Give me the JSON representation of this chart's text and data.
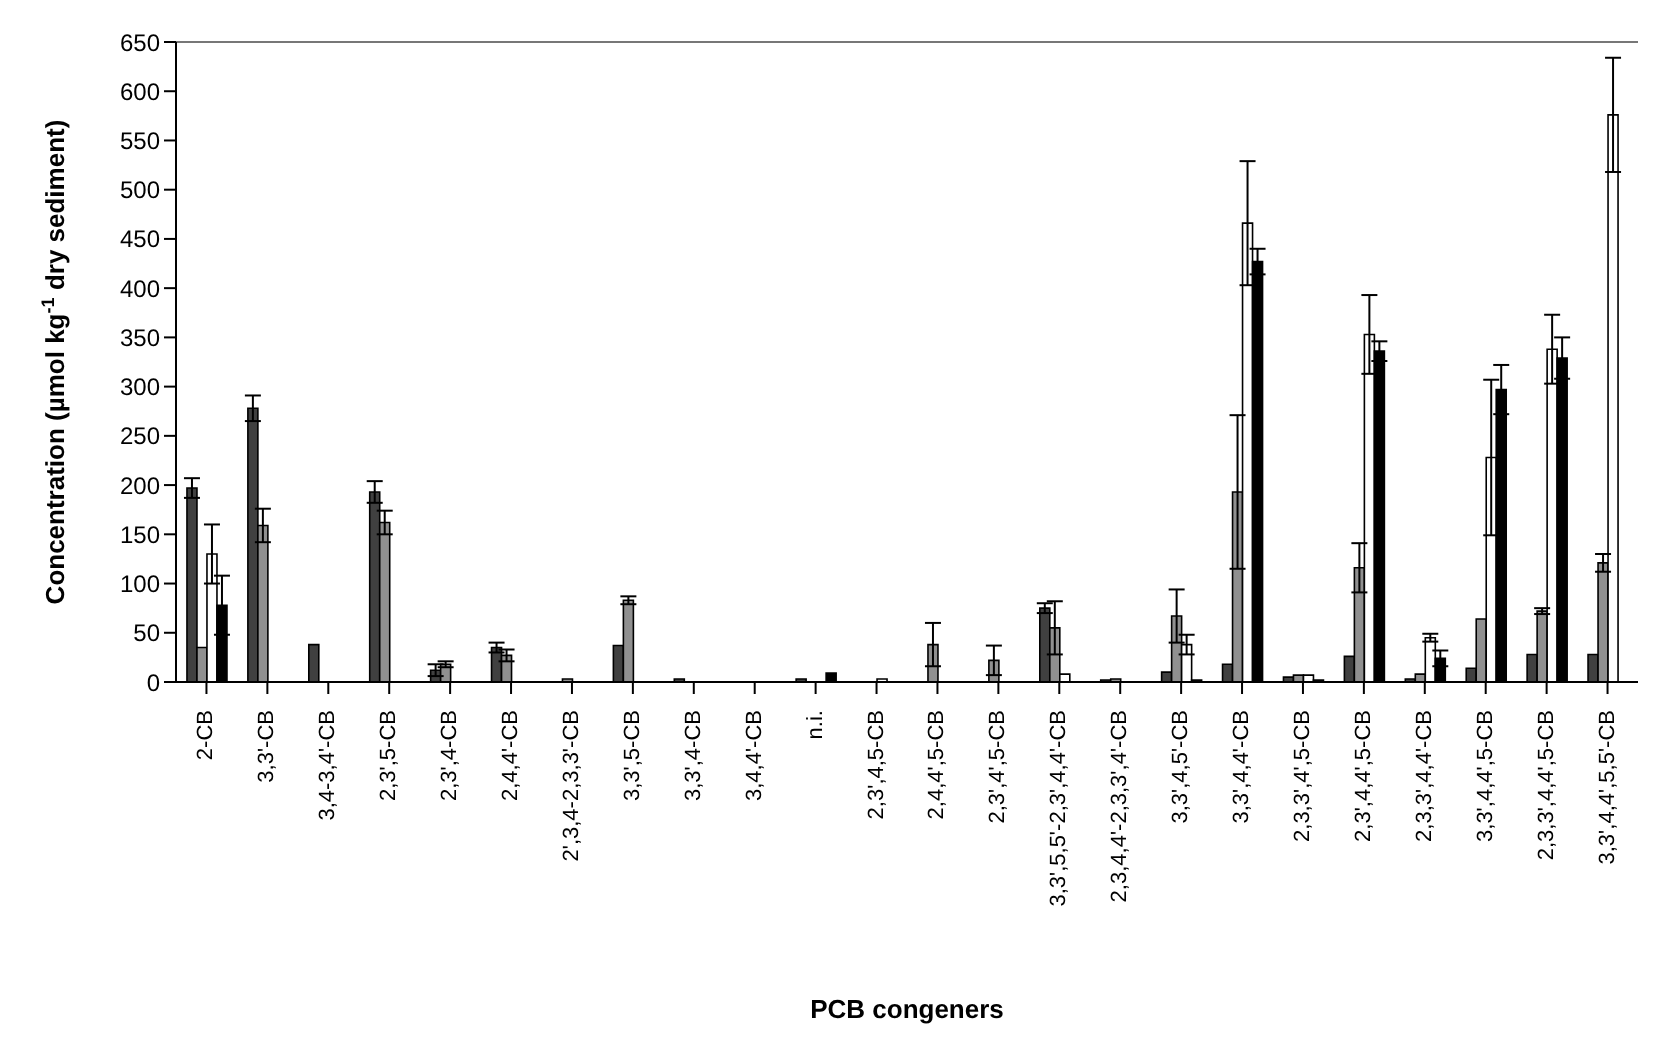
{
  "chart_data": {
    "type": "bar",
    "xlabel": "PCB congeners",
    "ylabel": "Concentration (µmol kg$^{-1}$ dry sediment)",
    "categories": [
      "2-CB",
      "3,3'-CB",
      "3,4-3,4'-CB",
      "2,3',5-CB",
      "2,3',4-CB",
      "2,4,4'-CB",
      "2',3,4-2,3,3'-CB",
      "3,3',5-CB",
      "3,3',4-CB",
      "3,4,4'-CB",
      "n.i.",
      "2,3',4,5-CB",
      "2,4,4',5-CB",
      "2,3',4',5-CB",
      "3,3',5,5'-2,3',4,4'-CB",
      "2,3,4,4'-2,3,3',4'-CB",
      "3,3',4,5'-CB",
      "3,3',4,4'-CB",
      "2,3,3',4',5-CB",
      "2,3',4,4',5-CB",
      "2,3,3',4,4'-CB",
      "3,3',4,4',5-CB",
      "2,3,3',4,4',5-CB",
      "3,3',4,4',5,5'-CB"
    ],
    "series": [
      {
        "color": "#404040",
        "values": [
          197,
          278,
          38,
          193,
          12,
          35,
          null,
          37,
          3,
          null,
          3,
          null,
          null,
          null,
          75,
          2,
          10,
          18,
          5,
          26,
          3,
          14,
          28,
          28
        ],
        "errors": [
          10,
          13,
          null,
          11,
          6,
          5,
          null,
          null,
          null,
          null,
          null,
          null,
          null,
          null,
          5,
          null,
          null,
          null,
          null,
          null,
          null,
          null,
          null,
          null
        ]
      },
      {
        "color": "#909090",
        "values": [
          35,
          159,
          null,
          162,
          18,
          27,
          3,
          83,
          null,
          null,
          null,
          null,
          38,
          22,
          55,
          3,
          67,
          193,
          7,
          116,
          8,
          64,
          72,
          121
        ],
        "errors": [
          null,
          17,
          null,
          12,
          3,
          6,
          null,
          4,
          null,
          null,
          null,
          null,
          22,
          15,
          27,
          null,
          27,
          78,
          null,
          25,
          null,
          null,
          3,
          9
        ]
      },
      {
        "color": "#ffffff",
        "values": [
          130,
          null,
          null,
          null,
          null,
          null,
          null,
          null,
          null,
          null,
          null,
          3,
          null,
          null,
          8,
          null,
          38,
          466,
          7,
          353,
          45,
          228,
          338,
          576
        ],
        "errors": [
          30,
          null,
          null,
          null,
          null,
          null,
          null,
          null,
          null,
          null,
          null,
          null,
          null,
          null,
          null,
          null,
          10,
          63,
          null,
          40,
          4,
          79,
          35,
          58
        ]
      },
      {
        "color": "#000000",
        "values": [
          78,
          null,
          null,
          null,
          null,
          null,
          null,
          null,
          null,
          null,
          9,
          null,
          null,
          null,
          null,
          null,
          2,
          427,
          2,
          336,
          24,
          297,
          329,
          null
        ],
        "errors": [
          30,
          null,
          null,
          null,
          null,
          null,
          null,
          null,
          null,
          null,
          null,
          null,
          null,
          null,
          null,
          null,
          null,
          13,
          null,
          10,
          8,
          25,
          21,
          null
        ]
      }
    ],
    "ylim": [
      0,
      650
    ],
    "yticks": [
      0,
      50,
      100,
      150,
      200,
      250,
      300,
      350,
      400,
      450,
      500,
      550,
      600,
      650
    ],
    "grid": false,
    "legend": false
  }
}
